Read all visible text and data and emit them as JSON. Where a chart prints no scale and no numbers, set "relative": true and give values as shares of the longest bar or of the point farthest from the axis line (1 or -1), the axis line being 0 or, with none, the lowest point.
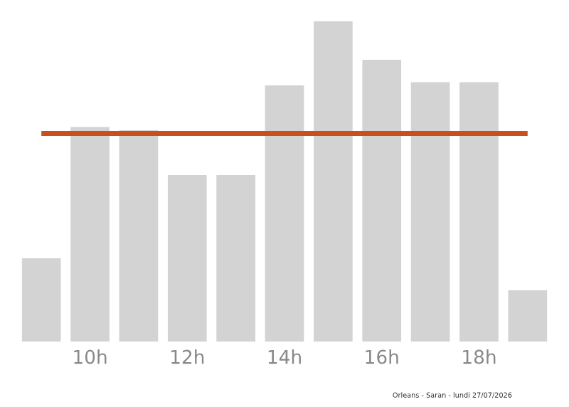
{
  "chart_data": {
    "type": "bar",
    "relative": true,
    "color": "#d3d3d3",
    "categories": [
      null,
      "10h",
      null,
      "12h",
      null,
      "14h",
      null,
      "16h",
      null,
      "18h",
      null
    ],
    "values": [
      0.26,
      0.67,
      0.66,
      0.52,
      0.52,
      0.8,
      1,
      0.88,
      0.81,
      0.81,
      0.16
    ],
    "ref_lines": [
      {
        "axis": "y",
        "value": 0.65,
        "color": "#c8501e"
      }
    ],
    "annotations": [
      "Orleans - Saran - lundi 27/07/2026"
    ],
    "grid": false,
    "legend": false
  }
}
